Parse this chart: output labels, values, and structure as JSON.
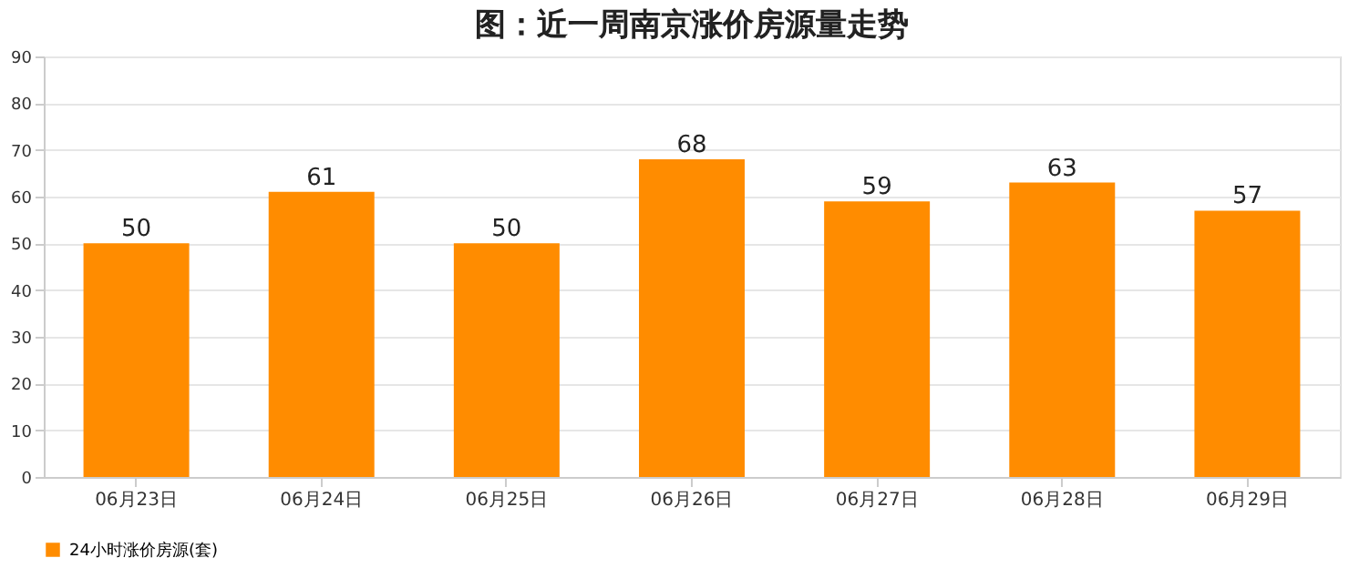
{
  "chart_data": {
    "type": "bar",
    "title": "图：近一周南京涨价房源量走势",
    "categories": [
      "06月23日",
      "06月24日",
      "06月25日",
      "06月26日",
      "06月27日",
      "06月28日",
      "06月29日"
    ],
    "series": [
      {
        "name": "24小时涨价房源(套)",
        "color": "#ff8c00",
        "values": [
          50,
          61,
          50,
          68,
          59,
          63,
          57
        ]
      }
    ],
    "ylim": [
      0,
      90
    ],
    "yticks": [
      0,
      10,
      20,
      30,
      40,
      50,
      60,
      70,
      80,
      90
    ],
    "grid": "y",
    "legend": "bottom",
    "data_labels": true
  }
}
